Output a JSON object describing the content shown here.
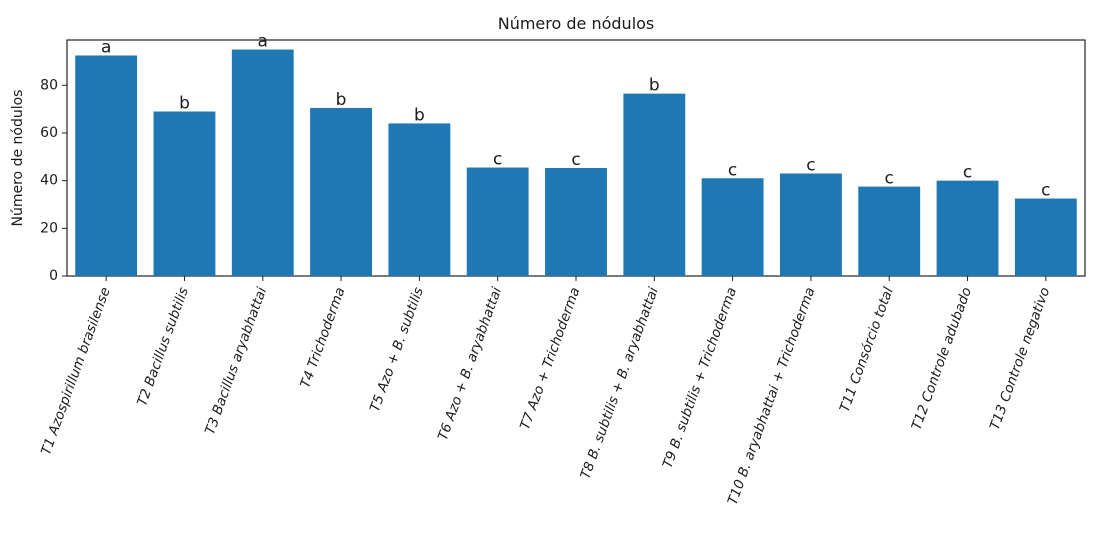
{
  "chart_data": {
    "type": "bar",
    "title": "Número de nódulos",
    "xlabel": "",
    "ylabel": "Número de nódulos",
    "ylim": [
      0,
      99
    ],
    "yticks": [
      0,
      20,
      40,
      60,
      80
    ],
    "grid": false,
    "bar_color": "#1f77b4",
    "categories": [
      "T1 Azospirillum brasilense",
      "T2 Bacillus subtilis",
      "T3 Bacillus aryabhattai",
      "T4 Trichoderma",
      "T5 Azo + B. subtilis",
      "T6 Azo + B. aryabhattai",
      "T7 Azo + Trichoderma",
      "T8 B. subtilis + B. aryabhattai",
      "T9 B. subtilis + Trichoderma",
      "T10 B. aryabhattai + Trichoderma",
      "T11 Consórcio total",
      "T12 Controle adubado",
      "T13 Controle negativo"
    ],
    "values": [
      92.5,
      69,
      95,
      70.5,
      64,
      45.5,
      45.3,
      76.5,
      41,
      43,
      37.5,
      40,
      32.5
    ],
    "labels": [
      "a",
      "b",
      "a",
      "b",
      "b",
      "c",
      "c",
      "b",
      "c",
      "c",
      "c",
      "c",
      "c"
    ]
  }
}
